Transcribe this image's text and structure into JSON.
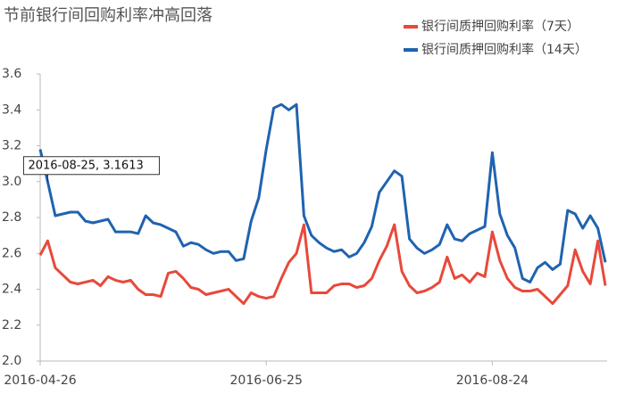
{
  "chart_data": {
    "type": "line",
    "title": "节前银行间回购利率冲高回落",
    "categories": [
      "2016-04-26",
      null,
      null,
      null,
      null,
      null,
      null,
      null,
      null,
      null,
      null,
      null,
      null,
      null,
      null,
      null,
      null,
      null,
      null,
      null,
      null,
      null,
      null,
      null,
      null,
      null,
      null,
      null,
      null,
      null,
      "2016-06-25",
      null,
      null,
      null,
      null,
      null,
      null,
      null,
      null,
      null,
      null,
      null,
      null,
      null,
      null,
      null,
      null,
      null,
      null,
      null,
      null,
      null,
      null,
      null,
      null,
      null,
      null,
      null,
      null,
      null,
      "2016-08-24",
      null,
      null,
      null,
      null,
      null,
      null,
      null,
      null,
      null,
      null,
      null,
      null,
      null,
      null,
      null
    ],
    "series": [
      {
        "name": "银行间质押回购利率（7天）",
        "color": "#e8493b",
        "values": [
          2.59,
          2.67,
          2.52,
          2.48,
          2.44,
          2.43,
          2.44,
          2.45,
          2.42,
          2.47,
          2.45,
          2.44,
          2.45,
          2.4,
          2.37,
          2.37,
          2.36,
          2.49,
          2.5,
          2.46,
          2.41,
          2.4,
          2.37,
          2.38,
          2.39,
          2.4,
          2.36,
          2.32,
          2.38,
          2.36,
          2.35,
          2.36,
          2.46,
          2.55,
          2.6,
          2.76,
          2.38,
          2.38,
          2.38,
          2.42,
          2.43,
          2.43,
          2.41,
          2.42,
          2.46,
          2.56,
          2.64,
          2.76,
          2.5,
          2.42,
          2.38,
          2.39,
          2.41,
          2.44,
          2.58,
          2.46,
          2.48,
          2.44,
          2.49,
          2.47,
          2.72,
          2.56,
          2.46,
          2.41,
          2.39,
          2.39,
          2.4,
          2.36,
          2.32,
          2.37,
          2.42,
          2.62,
          2.5,
          2.43,
          2.67,
          2.42
        ]
      },
      {
        "name": "银行间质押回购利率（14天）",
        "color": "#1f63b0",
        "values": [
          3.18,
          3.0,
          2.81,
          2.82,
          2.83,
          2.83,
          2.78,
          2.77,
          2.78,
          2.79,
          2.72,
          2.72,
          2.72,
          2.71,
          2.81,
          2.77,
          2.76,
          2.74,
          2.72,
          2.64,
          2.66,
          2.65,
          2.62,
          2.6,
          2.61,
          2.61,
          2.56,
          2.57,
          2.78,
          2.91,
          3.18,
          3.41,
          3.43,
          3.4,
          3.43,
          2.81,
          2.7,
          2.66,
          2.63,
          2.61,
          2.62,
          2.58,
          2.6,
          2.66,
          2.75,
          2.94,
          3.0,
          3.06,
          3.03,
          2.68,
          2.63,
          2.6,
          2.62,
          2.65,
          2.76,
          2.68,
          2.67,
          2.71,
          2.73,
          2.75,
          3.1613,
          2.82,
          2.7,
          2.63,
          2.46,
          2.44,
          2.52,
          2.55,
          2.51,
          2.54,
          2.84,
          2.82,
          2.74,
          2.81,
          2.74,
          2.55
        ]
      }
    ],
    "annotation": "2016-08-25, 3.1613",
    "ylim": [
      2.0,
      3.6
    ],
    "yticks": [
      {
        "value": 2.0,
        "label": "2.0"
      },
      2.2,
      2.4,
      2.6,
      2.8,
      {
        "value": 3.0,
        "label": "3.0"
      },
      3.2,
      3.4,
      3.6
    ],
    "grid": false,
    "legend": "top-right"
  }
}
